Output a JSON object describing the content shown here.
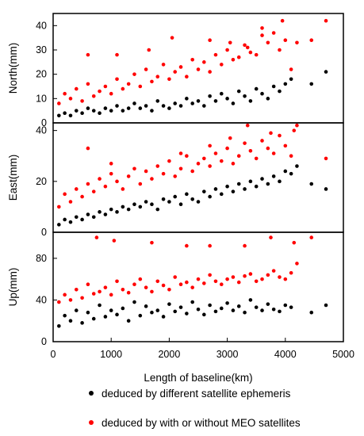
{
  "chart_data": {
    "type": "scatter",
    "xlabel": "Length of baseline(km)",
    "xlim": [
      0,
      5000
    ],
    "xticks": [
      "0",
      "1000",
      "2000",
      "3000",
      "4000",
      "5000"
    ],
    "grid": false,
    "legend_position": "bottom",
    "series": [
      {
        "name": "deduced by different satellite ephemeris",
        "color": "#000000"
      },
      {
        "name": "deduced by with or without MEO satellites",
        "color": "#ff0000"
      }
    ],
    "panels": [
      {
        "ylabel": "North(mm)",
        "ylim": [
          0,
          45
        ],
        "yticks": [
          "0",
          "10",
          "20",
          "30",
          "40"
        ],
        "series": [
          {
            "name": "deduced by different satellite ephemeris",
            "x": [
              100,
              200,
              300,
              400,
              500,
              600,
              700,
              800,
              900,
              1000,
              1100,
              1200,
              1300,
              1400,
              1500,
              1600,
              1700,
              1800,
              1900,
              2000,
              2100,
              2200,
              2300,
              2400,
              2500,
              2600,
              2700,
              2800,
              2900,
              3000,
              3100,
              3200,
              3300,
              3400,
              3500,
              3600,
              3700,
              3800,
              3900,
              4000,
              4100,
              4450,
              4700
            ],
            "y": [
              3,
              4,
              3,
              5,
              4,
              6,
              5,
              4,
              6,
              5,
              7,
              5,
              6,
              8,
              6,
              7,
              5,
              9,
              7,
              6,
              8,
              7,
              10,
              8,
              9,
              7,
              11,
              9,
              12,
              10,
              8,
              13,
              11,
              9,
              14,
              12,
              10,
              15,
              13,
              16,
              18,
              16,
              21
            ]
          },
          {
            "name": "deduced by with or without MEO satellites",
            "x": [
              100,
              200,
              300,
              400,
              500,
              600,
              700,
              800,
              900,
              1000,
              1100,
              1200,
              1300,
              1400,
              1500,
              1600,
              1700,
              1800,
              1900,
              2000,
              2100,
              2200,
              2300,
              2400,
              2500,
              2600,
              2700,
              2800,
              2900,
              3000,
              3100,
              3200,
              3300,
              3400,
              3500,
              3600,
              3700,
              3800,
              3900,
              4000,
              4100,
              4200,
              4450,
              4700,
              600,
              1100,
              1650,
              2050,
              2700,
              3050,
              3350,
              3600,
              3950
            ],
            "y": [
              8,
              12,
              10,
              14,
              9,
              16,
              11,
              13,
              15,
              12,
              18,
              14,
              16,
              20,
              15,
              22,
              17,
              19,
              24,
              18,
              21,
              23,
              19,
              26,
              22,
              25,
              21,
              28,
              24,
              30,
              26,
              27,
              32,
              29,
              28,
              36,
              33,
              37,
              30,
              34,
              22,
              33,
              34,
              42,
              28,
              28,
              30,
              35,
              34,
              33,
              31,
              39,
              42
            ]
          }
        ]
      },
      {
        "ylabel": "East(mm)",
        "ylim": [
          0,
          43
        ],
        "yticks": [
          "0",
          "20",
          "40"
        ],
        "series": [
          {
            "name": "deduced by different satellite ephemeris",
            "x": [
              100,
              200,
              300,
              400,
              500,
              600,
              700,
              800,
              900,
              1000,
              1100,
              1200,
              1300,
              1400,
              1500,
              1600,
              1700,
              1800,
              1900,
              2000,
              2100,
              2200,
              2300,
              2400,
              2500,
              2600,
              2700,
              2800,
              2900,
              3000,
              3100,
              3200,
              3300,
              3400,
              3500,
              3600,
              3700,
              3800,
              3900,
              4000,
              4100,
              4200,
              4450,
              4700
            ],
            "y": [
              3,
              5,
              4,
              6,
              5,
              7,
              6,
              8,
              7,
              9,
              8,
              10,
              9,
              11,
              10,
              12,
              11,
              9,
              13,
              12,
              14,
              11,
              15,
              13,
              12,
              16,
              14,
              17,
              15,
              18,
              16,
              19,
              17,
              20,
              18,
              21,
              19,
              22,
              20,
              24,
              23,
              26,
              19,
              17
            ]
          },
          {
            "name": "deduced by with or without MEO satellites",
            "x": [
              100,
              200,
              300,
              400,
              500,
              600,
              700,
              800,
              900,
              1000,
              1100,
              1200,
              1300,
              1400,
              1500,
              1600,
              1700,
              1800,
              1900,
              2000,
              2100,
              2200,
              2300,
              2400,
              2500,
              2600,
              2700,
              2800,
              2900,
              3000,
              3100,
              3200,
              3300,
              3400,
              3500,
              3600,
              3700,
              3800,
              3900,
              4000,
              4100,
              4200,
              4700,
              600,
              1000,
              2200,
              2700,
              3050,
              3350,
              3750,
              4150
            ],
            "y": [
              10,
              15,
              12,
              17,
              14,
              19,
              16,
              21,
              18,
              23,
              20,
              17,
              22,
              25,
              19,
              24,
              21,
              26,
              23,
              28,
              22,
              25,
              30,
              24,
              27,
              29,
              26,
              31,
              28,
              33,
              27,
              30,
              35,
              32,
              29,
              36,
              33,
              31,
              38,
              34,
              30,
              42,
              29,
              33,
              27,
              31,
              34,
              37,
              42,
              39,
              40
            ]
          }
        ]
      },
      {
        "ylabel": "Up(mm)",
        "ylim": [
          0,
          105
        ],
        "yticks": [
          "0",
          "40",
          "80"
        ],
        "series": [
          {
            "name": "deduced by different satellite ephemeris",
            "x": [
              100,
              200,
              300,
              400,
              500,
              600,
              700,
              800,
              900,
              1000,
              1100,
              1200,
              1300,
              1400,
              1500,
              1600,
              1700,
              1800,
              1900,
              2000,
              2100,
              2200,
              2300,
              2400,
              2500,
              2600,
              2700,
              2800,
              2900,
              3000,
              3100,
              3200,
              3300,
              3400,
              3500,
              3600,
              3700,
              3800,
              3900,
              4000,
              4100,
              4450,
              4700
            ],
            "y": [
              15,
              25,
              20,
              30,
              18,
              28,
              22,
              35,
              24,
              30,
              26,
              32,
              20,
              38,
              25,
              34,
              28,
              30,
              24,
              36,
              29,
              33,
              27,
              38,
              31,
              26,
              35,
              29,
              32,
              37,
              30,
              34,
              28,
              40,
              33,
              30,
              36,
              31,
              29,
              35,
              33,
              28,
              35
            ]
          },
          {
            "name": "deduced by with or without MEO satellites",
            "x": [
              100,
              200,
              300,
              400,
              500,
              600,
              700,
              800,
              900,
              1000,
              1100,
              1200,
              1300,
              1400,
              1500,
              1600,
              1700,
              1800,
              1900,
              2000,
              2100,
              2200,
              2300,
              2400,
              2500,
              2600,
              2700,
              2800,
              2900,
              3000,
              3100,
              3200,
              3300,
              3400,
              3500,
              3600,
              3700,
              3800,
              3900,
              4000,
              4100,
              4200,
              4450,
              750,
              1050,
              1700,
              2300,
              2700,
              3300,
              3750,
              4150
            ],
            "y": [
              38,
              45,
              40,
              50,
              42,
              55,
              46,
              48,
              52,
              45,
              58,
              50,
              47,
              55,
              60,
              52,
              48,
              58,
              54,
              50,
              62,
              55,
              57,
              52,
              60,
              56,
              64,
              58,
              55,
              60,
              62,
              57,
              63,
              65,
              58,
              60,
              64,
              68,
              62,
              60,
              66,
              75,
              100,
              100,
              97,
              95,
              92,
              92,
              92,
              100,
              95
            ]
          }
        ]
      }
    ]
  }
}
